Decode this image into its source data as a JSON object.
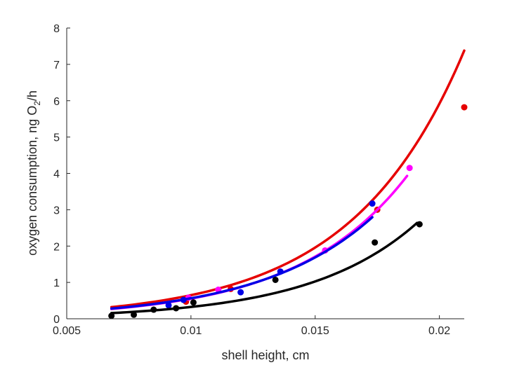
{
  "chart_data": {
    "type": "scatter",
    "title": "",
    "xlabel": "shell height, cm",
    "ylabel_main": "oxygen consumption, ng O",
    "ylabel_sub": "2",
    "ylabel_tail": "/h",
    "xlim": [
      0.005,
      0.021
    ],
    "ylim": [
      0,
      8
    ],
    "xticks": [
      0.005,
      0.01,
      0.015,
      0.02
    ],
    "xtick_labels": [
      "0.005",
      "0.01",
      "0.015",
      "0.02"
    ],
    "yticks": [
      0,
      1,
      2,
      3,
      4,
      5,
      6,
      7,
      8
    ],
    "ytick_labels": [
      "0",
      "1",
      "2",
      "3",
      "4",
      "5",
      "6",
      "7",
      "8"
    ],
    "grid": false,
    "series": [
      {
        "color": "#e60000",
        "points": [
          [
            0.0098,
            0.47
          ],
          [
            0.0116,
            0.82
          ],
          [
            0.0175,
            3.0
          ],
          [
            0.021,
            5.82
          ]
        ],
        "curve": {
          "a": 0.0712,
          "b": 221.0,
          "x_range": [
            0.0068,
            0.021
          ]
        }
      },
      {
        "color": "#ff00ff",
        "points": [
          [
            0.0099,
            0.58
          ],
          [
            0.0111,
            0.8
          ],
          [
            0.0154,
            1.88
          ],
          [
            0.0188,
            4.15
          ]
        ],
        "curve": {
          "a": 0.0585,
          "b": 225.0,
          "x_range": [
            0.0068,
            0.0187
          ]
        }
      },
      {
        "color": "#0000e6",
        "points": [
          [
            0.0091,
            0.37
          ],
          [
            0.0097,
            0.52
          ],
          [
            0.012,
            0.73
          ],
          [
            0.0136,
            1.3
          ],
          [
            0.0173,
            3.17
          ]
        ],
        "curve": {
          "a": 0.0632,
          "b": 219.0,
          "x_range": [
            0.0068,
            0.0173
          ]
        }
      },
      {
        "color": "#000000",
        "points": [
          [
            0.0068,
            0.08
          ],
          [
            0.0077,
            0.11
          ],
          [
            0.0085,
            0.25
          ],
          [
            0.0094,
            0.29
          ],
          [
            0.0101,
            0.45
          ],
          [
            0.0134,
            1.07
          ],
          [
            0.0174,
            2.1
          ],
          [
            0.0192,
            2.6
          ]
        ],
        "curve": {
          "a": 0.0326,
          "b": 230.0,
          "x_range": [
            0.0068,
            0.0191
          ]
        }
      }
    ]
  }
}
